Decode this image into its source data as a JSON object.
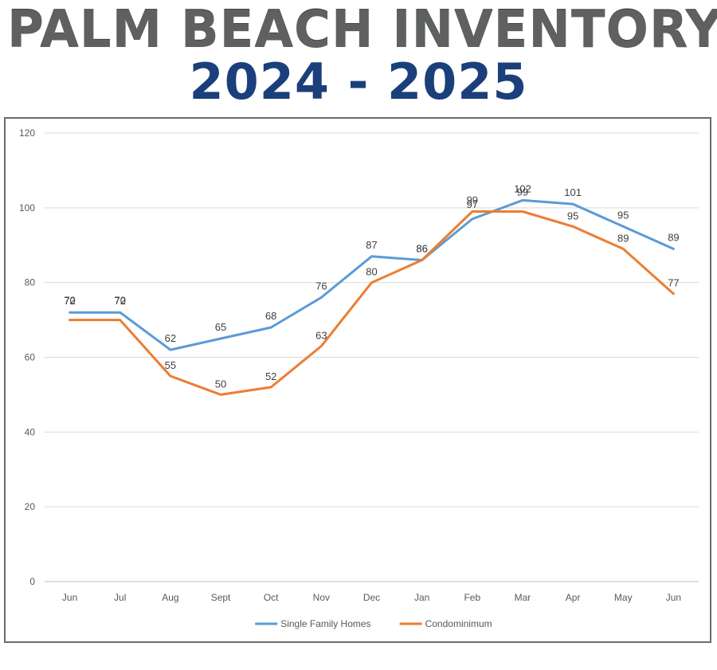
{
  "header": {
    "title": "PALM BEACH INVENTORY",
    "subtitle": "2024 - 2025"
  },
  "chart_data": {
    "type": "line",
    "title": "PALM BEACH INVENTORY",
    "subtitle": "2024 - 2025",
    "xlabel": "",
    "ylabel": "",
    "categories": [
      "Jun",
      "Jul",
      "Aug",
      "Sept",
      "Oct",
      "Nov",
      "Dec",
      "Jan",
      "Feb",
      "Mar",
      "Apr",
      "May",
      "Jun"
    ],
    "y_ticks": [
      "0",
      "20",
      "40",
      "60",
      "80",
      "100",
      "120"
    ],
    "ylim": [
      0,
      120
    ],
    "grid": true,
    "legend_position": "bottom",
    "series": [
      {
        "name": "Single Family Homes",
        "color": "#5b9bd5",
        "values": [
          72,
          72,
          62,
          65,
          68,
          76,
          87,
          86,
          97,
          102,
          101,
          95,
          89
        ]
      },
      {
        "name": "Condominimum",
        "color": "#ed7d31",
        "values": [
          70,
          70,
          55,
          50,
          52,
          63,
          80,
          86,
          99,
          99,
          95,
          89,
          77
        ]
      }
    ]
  }
}
